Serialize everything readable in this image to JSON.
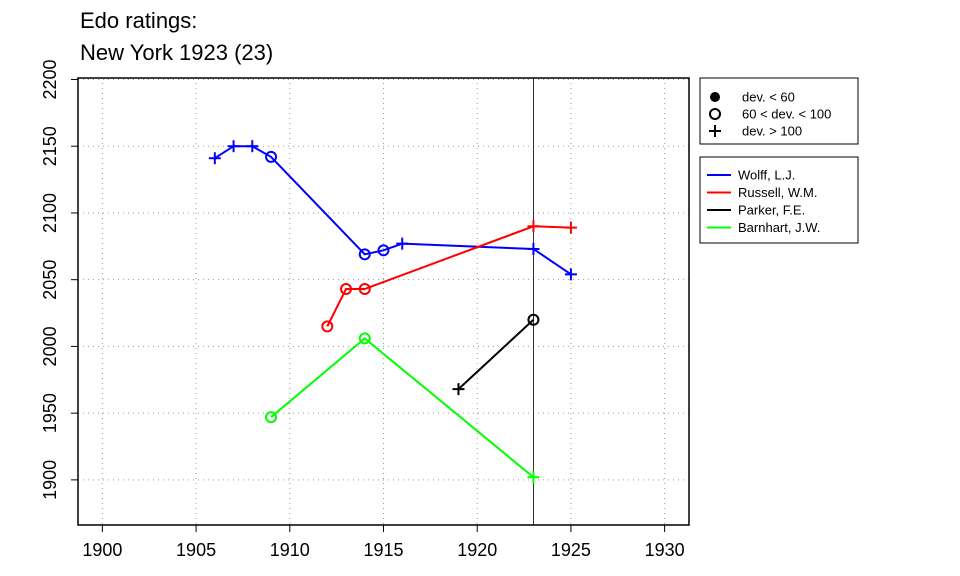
{
  "chart_data": {
    "type": "line",
    "title": [
      "Edo ratings:",
      "New York 1923 (23)"
    ],
    "xlabel": "",
    "ylabel": "",
    "xlim": [
      1898.7,
      1931.3
    ],
    "ylim": [
      1866.2,
      2201.1
    ],
    "x_ticks": [
      "1900",
      "1905",
      "1910",
      "1915",
      "1920",
      "1925",
      "1930"
    ],
    "y_ticks": [
      "1900",
      "1950",
      "2000",
      "2050",
      "2100",
      "2150",
      "2200"
    ],
    "grid": true,
    "reference_line_x": 1923,
    "marker_legend": [
      {
        "marker": "dot",
        "label": "dev. < 60"
      },
      {
        "marker": "circle",
        "label": "60 < dev. < 100"
      },
      {
        "marker": "plus",
        "label": "dev. > 100"
      }
    ],
    "series": [
      {
        "name": "Wolff, L.J.",
        "color": "#0000ff",
        "points": [
          {
            "x": 1906,
            "y": 2141,
            "m": "plus"
          },
          {
            "x": 1907,
            "y": 2150,
            "m": "plus"
          },
          {
            "x": 1908,
            "y": 2150,
            "m": "plus"
          },
          {
            "x": 1909,
            "y": 2142,
            "m": "circle"
          },
          {
            "x": 1914,
            "y": 2069,
            "m": "circle"
          },
          {
            "x": 1915,
            "y": 2072,
            "m": "circle"
          },
          {
            "x": 1916,
            "y": 2077,
            "m": "plus"
          },
          {
            "x": 1923,
            "y": 2073,
            "m": "plus"
          },
          {
            "x": 1925,
            "y": 2054,
            "m": "plus"
          }
        ]
      },
      {
        "name": "Russell, W.M.",
        "color": "#ff0000",
        "points": [
          {
            "x": 1912,
            "y": 2015,
            "m": "circle"
          },
          {
            "x": 1913,
            "y": 2043,
            "m": "circle"
          },
          {
            "x": 1914,
            "y": 2043,
            "m": "circle"
          },
          {
            "x": 1923,
            "y": 2090,
            "m": "plus"
          },
          {
            "x": 1925,
            "y": 2089,
            "m": "plus"
          }
        ]
      },
      {
        "name": "Parker, F.E.",
        "color": "#000000",
        "points": [
          {
            "x": 1919,
            "y": 1968,
            "m": "plus"
          },
          {
            "x": 1923,
            "y": 2020,
            "m": "circle"
          }
        ]
      },
      {
        "name": "Barnhart, J.W.",
        "color": "#00ff00",
        "points": [
          {
            "x": 1909,
            "y": 1947,
            "m": "circle"
          },
          {
            "x": 1914,
            "y": 2006,
            "m": "circle"
          },
          {
            "x": 1923,
            "y": 1902,
            "m": "plus"
          }
        ]
      }
    ]
  }
}
